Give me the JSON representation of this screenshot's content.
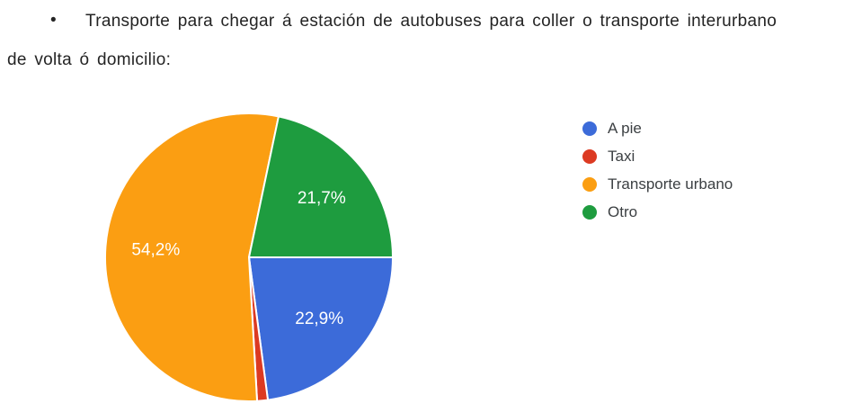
{
  "page": {
    "background": "#ffffff",
    "text_color": "#242424"
  },
  "paragraph": {
    "bullet": "•",
    "lines": [
      "Transporte para chegar á estación de autobuses para coller o transporte interurbano",
      "de volta ó domicilio:"
    ]
  },
  "chart_data": {
    "type": "pie",
    "title": "",
    "categories": [
      "A pie",
      "Taxi",
      "Transporte urbano",
      "Otro"
    ],
    "values": [
      22.9,
      1.2,
      54.2,
      21.7
    ],
    "slice_labels": [
      "22,9%",
      "",
      "54,2%",
      "21,7%"
    ],
    "colors": [
      "#3c6bd9",
      "#dc3a22",
      "#fb9e12",
      "#1e9c3f"
    ],
    "slice_border_color": "#ffffff",
    "start_angle_deg": 90,
    "direction": "clockwise",
    "legend_position": "right",
    "label_color": "#ffffff"
  },
  "legend": {
    "text_color": "#3c4043"
  }
}
